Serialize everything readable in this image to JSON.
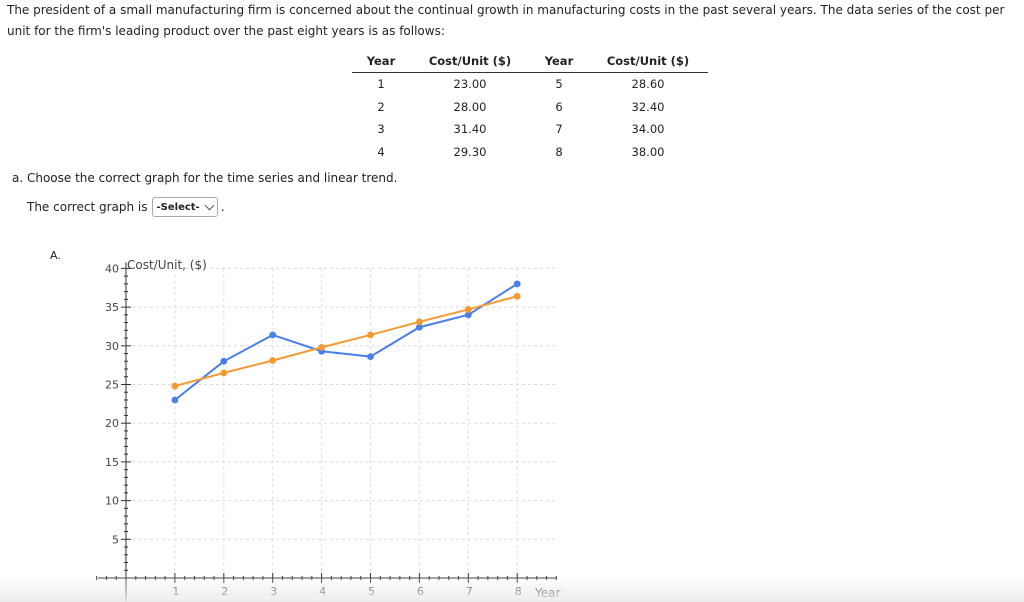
{
  "intro_text": "The president of a small manufacturing firm is concerned about the continual growth in manufacturing costs in the past several years. The data series of the cost per unit for the firm's leading product over the past eight years is as follows:",
  "table": {
    "headers": [
      "Year",
      "Cost/Unit ($)",
      "Year",
      "Cost/Unit ($)"
    ],
    "rows": [
      [
        "1",
        "23.00",
        "5",
        "28.60"
      ],
      [
        "2",
        "28.00",
        "6",
        "32.40"
      ],
      [
        "3",
        "31.40",
        "7",
        "34.00"
      ],
      [
        "4",
        "29.30",
        "8",
        "38.00"
      ]
    ]
  },
  "question": {
    "text": "a. Choose the correct graph for the time series and linear trend.",
    "answer_prefix": "The correct graph is",
    "select_value": "-Select-",
    "suffix": "."
  },
  "option_label": "A.",
  "chart_data": {
    "type": "line",
    "ylabel": "Cost/Unit, ($)",
    "xlabel": "Year",
    "x": [
      1,
      2,
      3,
      4,
      5,
      6,
      7,
      8
    ],
    "xlim": [
      0,
      9
    ],
    "ylim": [
      0,
      40
    ],
    "yticks": [
      5,
      10,
      15,
      20,
      25,
      30,
      35,
      40
    ],
    "grid": true,
    "series": [
      {
        "color": "#4a7fe8",
        "values": [
          23.0,
          28.0,
          31.4,
          29.3,
          28.6,
          32.4,
          34.0,
          38.0
        ]
      },
      {
        "color": "#f39a32",
        "values": [
          24.8,
          26.5,
          28.1,
          29.8,
          31.4,
          33.1,
          34.7,
          36.4
        ]
      }
    ]
  }
}
